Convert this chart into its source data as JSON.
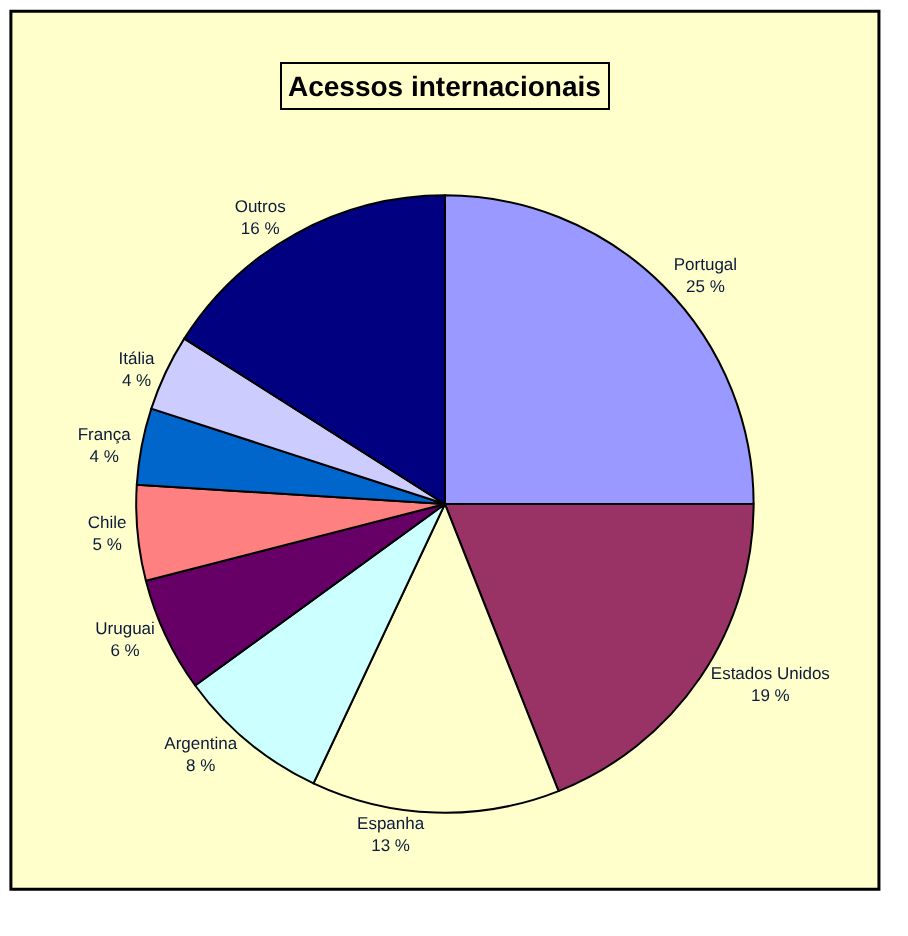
{
  "chart_data": {
    "type": "pie",
    "title": "Acessos internacionais",
    "categories": [
      "Portugal",
      "Estados Unidos",
      "Espanha",
      "Argentina",
      "Uruguai",
      "Chile",
      "França",
      "Itália",
      "Outros"
    ],
    "values": [
      25,
      19,
      13,
      8,
      6,
      5,
      4,
      4,
      16
    ],
    "value_labels": [
      "25 %",
      "19 %",
      "13 %",
      "8 %",
      "6 %",
      "5 %",
      "4 %",
      "4 %",
      "16 %"
    ],
    "colors": [
      "#9999ff",
      "#993366",
      "#ffffcc",
      "#ccffff",
      "#660066",
      "#ff8080",
      "#0066cc",
      "#ccccff",
      "#000080"
    ],
    "legend": false
  }
}
